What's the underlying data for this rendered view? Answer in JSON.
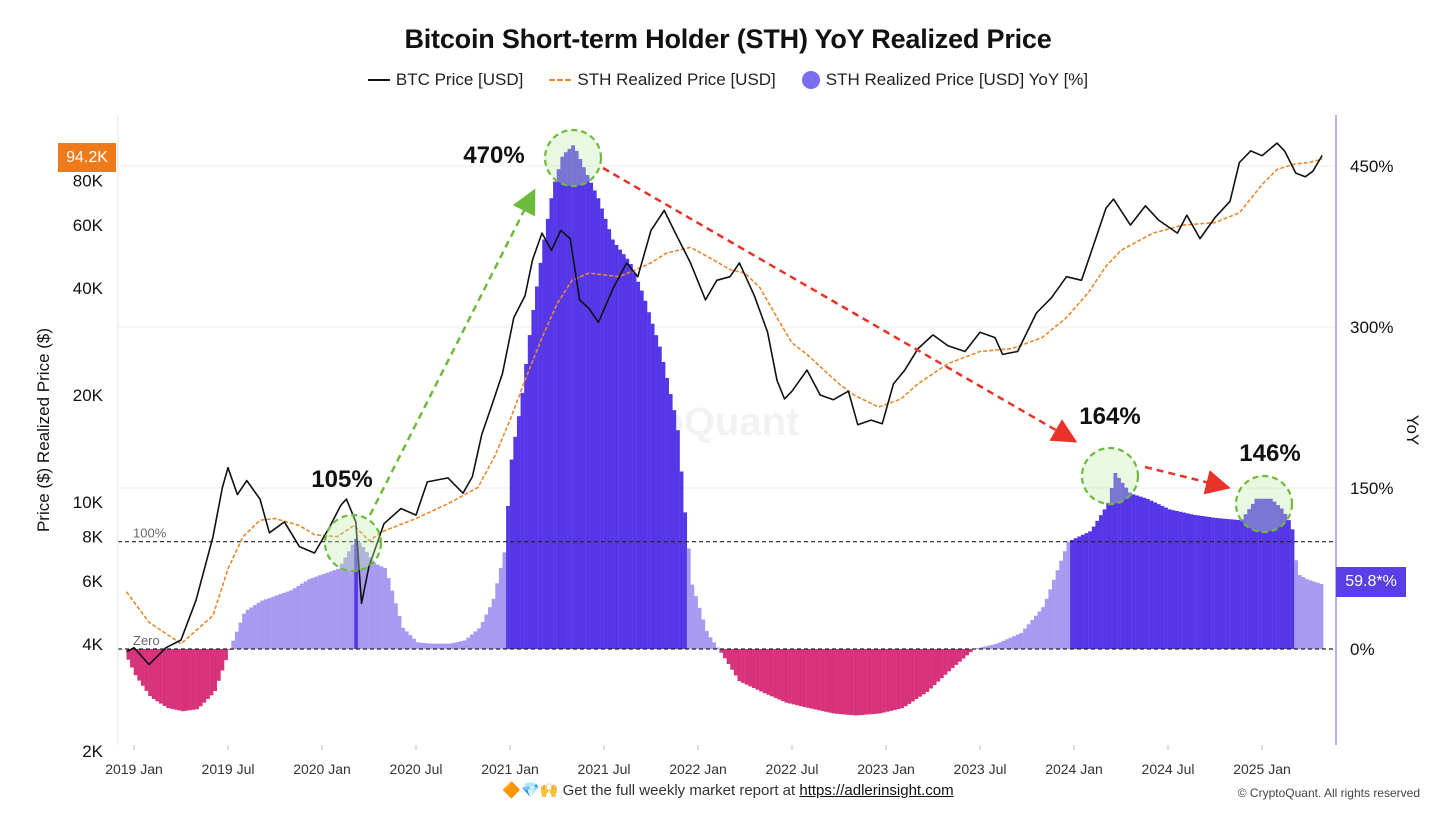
{
  "header": {
    "title": "Bitcoin Short-term Holder (STH) YoY Realized Price"
  },
  "legend": {
    "btc": "BTC Price [USD]",
    "sth": "STH Realized Price [USD]",
    "yoy": "STH Realized Price [USD] YoY [%]"
  },
  "badges": {
    "price": "94.2K",
    "yoy": "59.8*%"
  },
  "watermark": "CryptoQuant",
  "footer": {
    "emoji": "🔶💎🙌",
    "text": "Get the full weekly market report at ",
    "link": "https://adlerinsight.com",
    "copyright": "© CryptoQuant. All rights reserved"
  },
  "chart_data": {
    "type": "line",
    "ylabel": "Price ($) Realized Price ($)",
    "y2label": "YoY",
    "yscale": "log",
    "x_ticks": [
      "2019 Jan",
      "2019 Jul",
      "2020 Jan",
      "2020 Jul",
      "2021 Jan",
      "2021 Jul",
      "2022 Jan",
      "2022 Jul",
      "2023 Jan",
      "2023 Jul",
      "2024 Jan",
      "2024 Jul",
      "2025 Jan"
    ],
    "y_ticks": [
      "2K",
      "4K",
      "6K",
      "8K",
      "10K",
      "20K",
      "40K",
      "60K",
      "80K"
    ],
    "y_tick_values": [
      2000,
      4000,
      6000,
      8000,
      10000,
      20000,
      40000,
      60000,
      80000
    ],
    "y2_ticks": [
      "0%",
      "150%",
      "300%",
      "450%"
    ],
    "y2_tick_values": [
      0,
      150,
      300,
      450
    ],
    "ref_lines": [
      {
        "label": "100%",
        "value": 100
      },
      {
        "label": "Zero",
        "value": 0
      }
    ],
    "annotations": [
      "105%",
      "470%",
      "164%",
      "146%"
    ],
    "btc_price": [
      [
        2018.96,
        3800
      ],
      [
        2019.0,
        3900
      ],
      [
        2019.08,
        3500
      ],
      [
        2019.17,
        3900
      ],
      [
        2019.25,
        4100
      ],
      [
        2019.33,
        5300
      ],
      [
        2019.42,
        8000
      ],
      [
        2019.47,
        11000
      ],
      [
        2019.5,
        12500
      ],
      [
        2019.55,
        10500
      ],
      [
        2019.6,
        11500
      ],
      [
        2019.67,
        10200
      ],
      [
        2019.72,
        8200
      ],
      [
        2019.8,
        8800
      ],
      [
        2019.88,
        7500
      ],
      [
        2019.96,
        7200
      ],
      [
        2020.04,
        8500
      ],
      [
        2020.1,
        9800
      ],
      [
        2020.13,
        10200
      ],
      [
        2020.18,
        8800
      ],
      [
        2020.21,
        5200
      ],
      [
        2020.25,
        6600
      ],
      [
        2020.33,
        8700
      ],
      [
        2020.42,
        9600
      ],
      [
        2020.5,
        9200
      ],
      [
        2020.56,
        11400
      ],
      [
        2020.67,
        11700
      ],
      [
        2020.75,
        10600
      ],
      [
        2020.8,
        11800
      ],
      [
        2020.85,
        15500
      ],
      [
        2020.9,
        18500
      ],
      [
        2020.96,
        23000
      ],
      [
        2021.02,
        33000
      ],
      [
        2021.08,
        38000
      ],
      [
        2021.12,
        48000
      ],
      [
        2021.17,
        57000
      ],
      [
        2021.22,
        51000
      ],
      [
        2021.27,
        58000
      ],
      [
        2021.32,
        55000
      ],
      [
        2021.37,
        37000
      ],
      [
        2021.42,
        35000
      ],
      [
        2021.47,
        32000
      ],
      [
        2021.55,
        40000
      ],
      [
        2021.62,
        47000
      ],
      [
        2021.68,
        43000
      ],
      [
        2021.75,
        58000
      ],
      [
        2021.82,
        66000
      ],
      [
        2021.88,
        57000
      ],
      [
        2021.96,
        47000
      ],
      [
        2022.04,
        37000
      ],
      [
        2022.1,
        42000
      ],
      [
        2022.17,
        43000
      ],
      [
        2022.22,
        47000
      ],
      [
        2022.3,
        38000
      ],
      [
        2022.37,
        30000
      ],
      [
        2022.42,
        22000
      ],
      [
        2022.46,
        19500
      ],
      [
        2022.5,
        20500
      ],
      [
        2022.58,
        23500
      ],
      [
        2022.65,
        20000
      ],
      [
        2022.72,
        19400
      ],
      [
        2022.8,
        20500
      ],
      [
        2022.85,
        16500
      ],
      [
        2022.92,
        17000
      ],
      [
        2022.98,
        16600
      ],
      [
        2023.04,
        21500
      ],
      [
        2023.1,
        23500
      ],
      [
        2023.17,
        27000
      ],
      [
        2023.25,
        29500
      ],
      [
        2023.33,
        27500
      ],
      [
        2023.42,
        26500
      ],
      [
        2023.5,
        30000
      ],
      [
        2023.58,
        29000
      ],
      [
        2023.62,
        26000
      ],
      [
        2023.7,
        26500
      ],
      [
        2023.8,
        34000
      ],
      [
        2023.88,
        37500
      ],
      [
        2023.96,
        43000
      ],
      [
        2024.04,
        42000
      ],
      [
        2024.1,
        52000
      ],
      [
        2024.17,
        67000
      ],
      [
        2024.21,
        71000
      ],
      [
        2024.3,
        60000
      ],
      [
        2024.38,
        68000
      ],
      [
        2024.45,
        62000
      ],
      [
        2024.55,
        57000
      ],
      [
        2024.6,
        64000
      ],
      [
        2024.67,
        55000
      ],
      [
        2024.75,
        63000
      ],
      [
        2024.83,
        70000
      ],
      [
        2024.88,
        90000
      ],
      [
        2024.94,
        97000
      ],
      [
        2025.0,
        94000
      ],
      [
        2025.08,
        102000
      ],
      [
        2025.12,
        97000
      ],
      [
        2025.18,
        84000
      ],
      [
        2025.23,
        82000
      ],
      [
        2025.27,
        85000
      ],
      [
        2025.32,
        94200
      ]
    ],
    "sth_realized_price": [
      [
        2018.96,
        5600
      ],
      [
        2019.08,
        4600
      ],
      [
        2019.25,
        4000
      ],
      [
        2019.42,
        4800
      ],
      [
        2019.5,
        6500
      ],
      [
        2019.58,
        8000
      ],
      [
        2019.67,
        8900
      ],
      [
        2019.75,
        9000
      ],
      [
        2019.88,
        8600
      ],
      [
        2019.96,
        8100
      ],
      [
        2020.08,
        8000
      ],
      [
        2020.17,
        8600
      ],
      [
        2020.25,
        7800
      ],
      [
        2020.33,
        8300
      ],
      [
        2020.5,
        9000
      ],
      [
        2020.67,
        9900
      ],
      [
        2020.83,
        11000
      ],
      [
        2020.92,
        13500
      ],
      [
        2021.0,
        17000
      ],
      [
        2021.08,
        22000
      ],
      [
        2021.17,
        29000
      ],
      [
        2021.25,
        36000
      ],
      [
        2021.33,
        42000
      ],
      [
        2021.42,
        44000
      ],
      [
        2021.5,
        43500
      ],
      [
        2021.58,
        43000
      ],
      [
        2021.67,
        45000
      ],
      [
        2021.75,
        47000
      ],
      [
        2021.83,
        50000
      ],
      [
        2021.96,
        52000
      ],
      [
        2022.08,
        48000
      ],
      [
        2022.17,
        45000
      ],
      [
        2022.25,
        44000
      ],
      [
        2022.33,
        40000
      ],
      [
        2022.42,
        33000
      ],
      [
        2022.5,
        28000
      ],
      [
        2022.58,
        26000
      ],
      [
        2022.67,
        23500
      ],
      [
        2022.75,
        21500
      ],
      [
        2022.83,
        20000
      ],
      [
        2022.96,
        18500
      ],
      [
        2023.08,
        19500
      ],
      [
        2023.17,
        21500
      ],
      [
        2023.33,
        24500
      ],
      [
        2023.5,
        26500
      ],
      [
        2023.67,
        27000
      ],
      [
        2023.83,
        29000
      ],
      [
        2023.96,
        33000
      ],
      [
        2024.08,
        39000
      ],
      [
        2024.17,
        46000
      ],
      [
        2024.25,
        51000
      ],
      [
        2024.42,
        57000
      ],
      [
        2024.58,
        60000
      ],
      [
        2024.75,
        61000
      ],
      [
        2024.88,
        65000
      ],
      [
        2025.0,
        78000
      ],
      [
        2025.08,
        86000
      ],
      [
        2025.17,
        89000
      ],
      [
        2025.25,
        90000
      ],
      [
        2025.32,
        92000
      ]
    ],
    "sth_yoy_pct": [
      [
        2018.96,
        -10
      ],
      [
        2019.0,
        -25
      ],
      [
        2019.08,
        -45
      ],
      [
        2019.17,
        -55
      ],
      [
        2019.25,
        -58
      ],
      [
        2019.33,
        -56
      ],
      [
        2019.42,
        -40
      ],
      [
        2019.5,
        0
      ],
      [
        2019.58,
        35
      ],
      [
        2019.67,
        45
      ],
      [
        2019.75,
        50
      ],
      [
        2019.83,
        55
      ],
      [
        2019.92,
        65
      ],
      [
        2020.0,
        70
      ],
      [
        2020.08,
        75
      ],
      [
        2020.13,
        90
      ],
      [
        2020.17,
        103
      ],
      [
        2020.21,
        95
      ],
      [
        2020.27,
        80
      ],
      [
        2020.33,
        75
      ],
      [
        2020.42,
        20
      ],
      [
        2020.5,
        6
      ],
      [
        2020.58,
        5
      ],
      [
        2020.67,
        5
      ],
      [
        2020.75,
        8
      ],
      [
        2020.83,
        20
      ],
      [
        2020.9,
        45
      ],
      [
        2020.96,
        90
      ],
      [
        2021.0,
        180
      ],
      [
        2021.05,
        230
      ],
      [
        2021.1,
        300
      ],
      [
        2021.17,
        380
      ],
      [
        2021.22,
        430
      ],
      [
        2021.27,
        460
      ],
      [
        2021.33,
        470
      ],
      [
        2021.38,
        450
      ],
      [
        2021.46,
        420
      ],
      [
        2021.54,
        380
      ],
      [
        2021.63,
        360
      ],
      [
        2021.7,
        330
      ],
      [
        2021.79,
        280
      ],
      [
        2021.88,
        210
      ],
      [
        2021.92,
        130
      ],
      [
        2021.96,
        60
      ],
      [
        2022.04,
        15
      ],
      [
        2022.08,
        5
      ],
      [
        2022.12,
        -5
      ],
      [
        2022.21,
        -30
      ],
      [
        2022.33,
        -40
      ],
      [
        2022.46,
        -50
      ],
      [
        2022.58,
        -55
      ],
      [
        2022.71,
        -60
      ],
      [
        2022.83,
        -62
      ],
      [
        2022.96,
        -60
      ],
      [
        2023.08,
        -55
      ],
      [
        2023.21,
        -40
      ],
      [
        2023.33,
        -20
      ],
      [
        2023.46,
        0
      ],
      [
        2023.58,
        5
      ],
      [
        2023.71,
        15
      ],
      [
        2023.83,
        40
      ],
      [
        2023.96,
        100
      ],
      [
        2024.08,
        110
      ],
      [
        2024.17,
        135
      ],
      [
        2024.21,
        164
      ],
      [
        2024.29,
        145
      ],
      [
        2024.38,
        140
      ],
      [
        2024.5,
        130
      ],
      [
        2024.63,
        125
      ],
      [
        2024.75,
        122
      ],
      [
        2024.88,
        120
      ],
      [
        2024.96,
        140
      ],
      [
        2025.04,
        140
      ],
      [
        2025.1,
        130
      ],
      [
        2025.15,
        115
      ],
      [
        2025.18,
        70
      ],
      [
        2025.23,
        65
      ],
      [
        2025.32,
        59.8
      ]
    ]
  }
}
